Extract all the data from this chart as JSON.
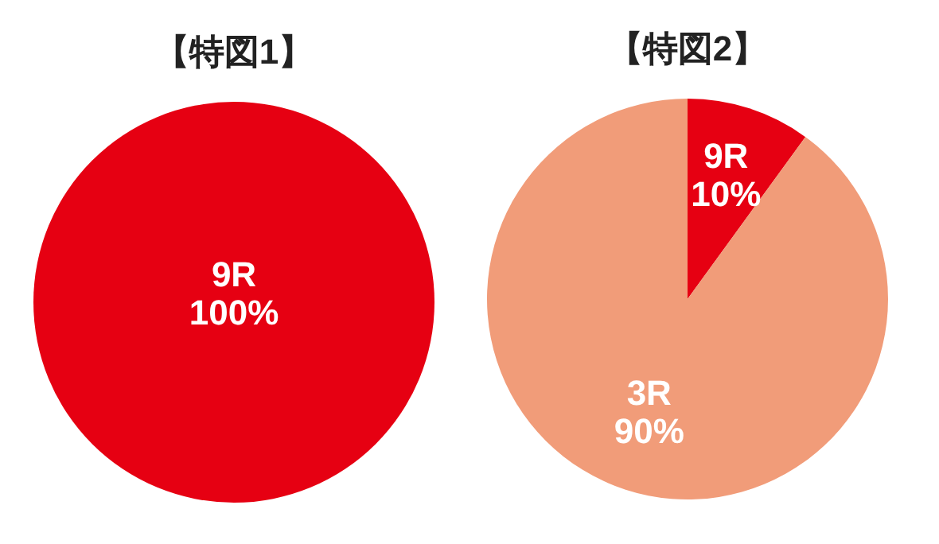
{
  "chart_data": [
    {
      "type": "pie",
      "title": "【特図1】",
      "categories": [
        "9R"
      ],
      "values": [
        100
      ],
      "colors": [
        "#e60012"
      ],
      "value_labels": [
        "100%"
      ]
    },
    {
      "type": "pie",
      "title": "【特図2】",
      "categories": [
        "9R",
        "3R"
      ],
      "values": [
        10,
        90
      ],
      "colors": [
        "#e60012",
        "#f19c79"
      ],
      "value_labels": [
        "10%",
        "90%"
      ]
    }
  ]
}
